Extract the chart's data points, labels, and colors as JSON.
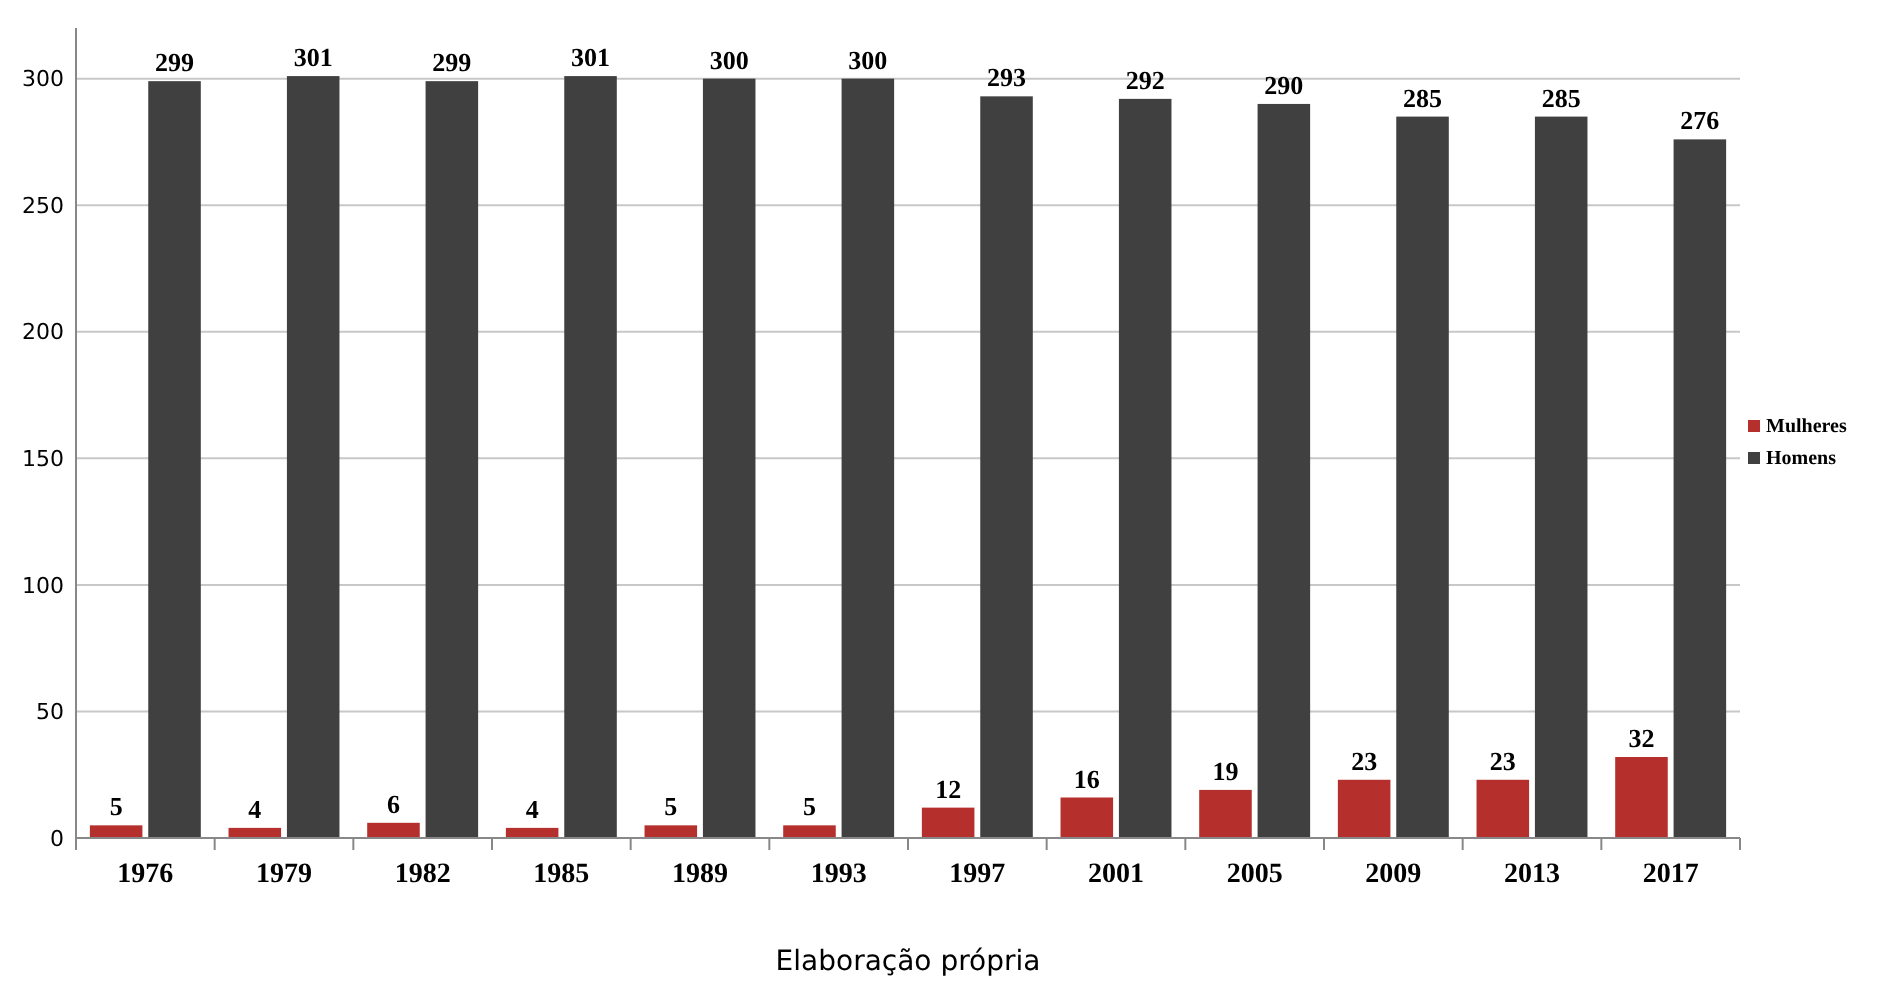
{
  "chart_data": {
    "type": "bar",
    "categories": [
      "1976",
      "1979",
      "1982",
      "1985",
      "1989",
      "1993",
      "1997",
      "2001",
      "2005",
      "2009",
      "2013",
      "2017"
    ],
    "series": [
      {
        "name": "Mulheres",
        "color": "#b5302c",
        "values": [
          5,
          4,
          6,
          4,
          5,
          5,
          12,
          16,
          19,
          23,
          23,
          32
        ]
      },
      {
        "name": "Homens",
        "color": "#404040",
        "values": [
          299,
          301,
          299,
          301,
          300,
          300,
          293,
          292,
          290,
          285,
          285,
          276
        ]
      }
    ],
    "ylim": [
      0,
      320
    ],
    "yticks": [
      0,
      50,
      100,
      150,
      200,
      250,
      300
    ],
    "grid": "y",
    "legend": "right",
    "data_labels": true,
    "annotations": [
      "Elaboração própria"
    ]
  }
}
